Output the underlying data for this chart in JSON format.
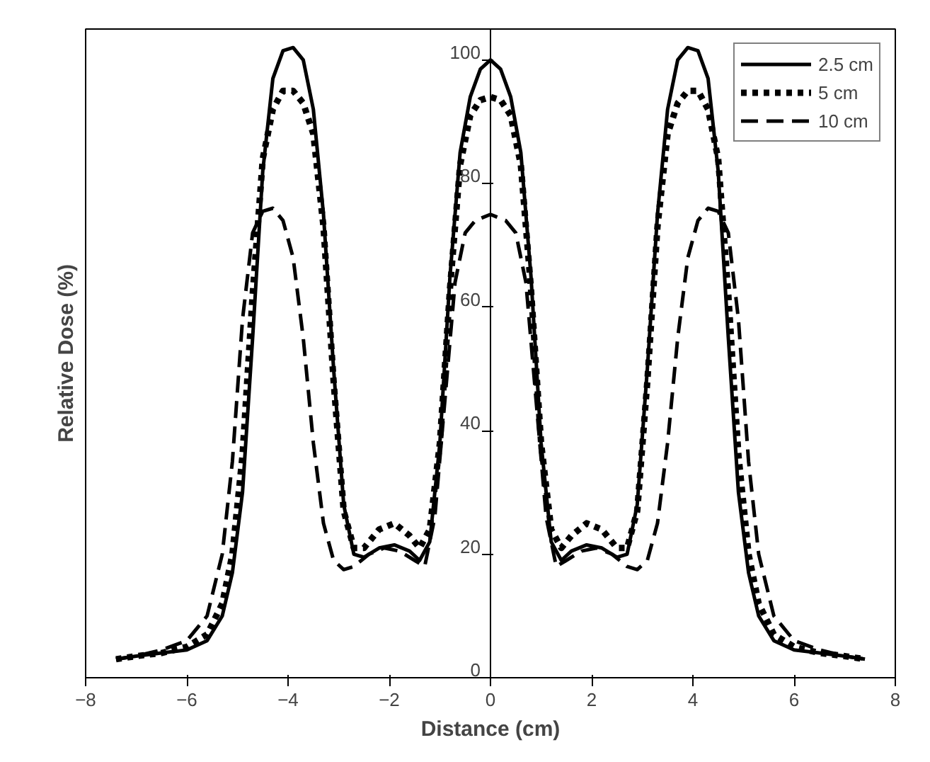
{
  "chart_data": {
    "type": "line",
    "xlabel": "Distance (cm)",
    "ylabel": "Relative Dose (%)",
    "xlim": [
      -8,
      8
    ],
    "xticks": [
      -8,
      -6,
      -4,
      -2,
      0,
      2,
      4,
      6,
      8
    ],
    "ylim": [
      0,
      105
    ],
    "yticks": [
      0,
      20,
      40,
      60,
      80,
      100
    ],
    "grid": false,
    "legend": "top right",
    "series": [
      {
        "name": "2.5 cm",
        "color": "#000000",
        "line_style": "solid",
        "x": [
          -7.4,
          -7,
          -6.5,
          -6,
          -5.6,
          -5.3,
          -5.1,
          -4.9,
          -4.7,
          -4.5,
          -4.3,
          -4.1,
          -3.9,
          -3.7,
          -3.5,
          -3.3,
          -3.1,
          -2.9,
          -2.7,
          -2.5,
          -2.2,
          -1.9,
          -1.6,
          -1.4,
          -1.2,
          -1.0,
          -0.8,
          -0.6,
          -0.4,
          -0.2,
          0,
          0.2,
          0.4,
          0.6,
          0.8,
          1.0,
          1.2,
          1.4,
          1.6,
          1.9,
          2.2,
          2.5,
          2.7,
          2.9,
          3.1,
          3.3,
          3.5,
          3.7,
          3.9,
          4.1,
          4.3,
          4.5,
          4.7,
          4.9,
          5.1,
          5.3,
          5.6,
          6,
          6.5,
          7,
          7.4
        ],
        "values": [
          3,
          3.5,
          4,
          4.5,
          6,
          10,
          17,
          30,
          55,
          82,
          97,
          101.5,
          102,
          100,
          92,
          75,
          50,
          28,
          20,
          19.5,
          21,
          21.5,
          20.5,
          19,
          22,
          38,
          65,
          85,
          94,
          98.5,
          100,
          98.5,
          94,
          85,
          65,
          38,
          22,
          19,
          20.5,
          21.5,
          21,
          19.5,
          20,
          28,
          50,
          75,
          92,
          100,
          102,
          101.5,
          97,
          82,
          55,
          30,
          17,
          10,
          6,
          4.5,
          4,
          3.5,
          3
        ]
      },
      {
        "name": "5 cm",
        "color": "#000000",
        "line_style": "dotted",
        "x": [
          -7.4,
          -7,
          -6.5,
          -6,
          -5.6,
          -5.3,
          -5.1,
          -4.9,
          -4.7,
          -4.5,
          -4.3,
          -4.1,
          -3.9,
          -3.7,
          -3.5,
          -3.3,
          -3.1,
          -2.9,
          -2.7,
          -2.5,
          -2.2,
          -1.9,
          -1.6,
          -1.4,
          -1.2,
          -1.0,
          -0.8,
          -0.6,
          -0.4,
          -0.2,
          0,
          0.2,
          0.4,
          0.6,
          0.8,
          1.0,
          1.2,
          1.4,
          1.6,
          1.9,
          2.2,
          2.5,
          2.7,
          2.9,
          3.1,
          3.3,
          3.5,
          3.7,
          3.9,
          4.1,
          4.3,
          4.5,
          4.7,
          4.9,
          5.1,
          5.3,
          5.6,
          6,
          6.5,
          7,
          7.4
        ],
        "values": [
          3,
          3.5,
          4,
          5,
          7,
          12,
          20,
          36,
          62,
          84,
          92,
          95,
          95,
          93,
          88,
          73,
          48,
          27,
          21,
          21,
          24,
          25,
          23,
          21,
          24,
          38,
          63,
          83,
          91,
          93.5,
          94,
          93.5,
          91,
          83,
          63,
          38,
          24,
          21,
          23,
          25,
          24,
          21,
          21,
          27,
          48,
          73,
          88,
          93,
          95,
          95,
          92,
          84,
          62,
          36,
          20,
          12,
          7,
          5,
          4,
          3.5,
          3
        ]
      },
      {
        "name": "10 cm",
        "color": "#000000",
        "line_style": "dashed",
        "x": [
          -7.4,
          -7,
          -6.5,
          -6,
          -5.6,
          -5.3,
          -5.1,
          -4.9,
          -4.7,
          -4.5,
          -4.3,
          -4.1,
          -3.9,
          -3.7,
          -3.5,
          -3.3,
          -3.1,
          -2.9,
          -2.7,
          -2.4,
          -2.1,
          -1.8,
          -1.5,
          -1.3,
          -1.1,
          -0.9,
          -0.7,
          -0.5,
          -0.3,
          0,
          0.3,
          0.5,
          0.7,
          0.9,
          1.1,
          1.3,
          1.5,
          1.8,
          2.1,
          2.4,
          2.7,
          2.9,
          3.1,
          3.3,
          3.5,
          3.7,
          3.9,
          4.1,
          4.3,
          4.5,
          4.7,
          4.9,
          5.1,
          5.3,
          5.6,
          6,
          6.5,
          7,
          7.4
        ],
        "values": [
          3,
          3.5,
          4.5,
          6,
          10,
          20,
          35,
          58,
          72,
          75.5,
          76,
          74,
          68,
          55,
          38,
          25,
          19,
          17.5,
          18,
          20,
          21,
          20.5,
          19,
          18,
          26,
          45,
          64,
          72,
          74,
          75,
          74,
          72,
          64,
          45,
          26,
          18,
          19,
          20.5,
          21,
          20,
          18,
          17.5,
          19,
          25,
          38,
          55,
          68,
          74,
          76,
          75.5,
          72,
          58,
          35,
          20,
          10,
          6,
          4.5,
          3.5,
          3
        ]
      }
    ]
  }
}
